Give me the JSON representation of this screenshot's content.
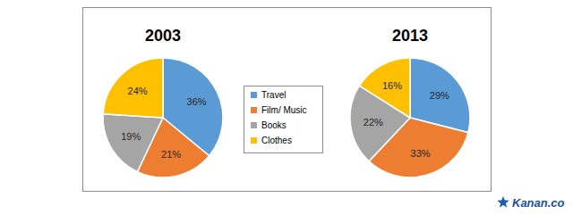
{
  "chart_data": {
    "type": "pie",
    "categories": [
      "Travel",
      "Film/ Music",
      "Books",
      "Clothes"
    ],
    "colors": [
      "#5b9bd5",
      "#ed7d31",
      "#a5a5a5",
      "#ffc000"
    ],
    "series": [
      {
        "name": "2003",
        "values": [
          36,
          21,
          19,
          24
        ],
        "value_labels": [
          "36%",
          "21%",
          "19%",
          "24%"
        ]
      },
      {
        "name": "2013",
        "values": [
          29,
          33,
          22,
          16
        ],
        "value_labels": [
          "29%",
          "33%",
          "22%",
          "16%"
        ]
      }
    ],
    "data_labels": true,
    "legend": "center",
    "annotations": [
      "Kanan.co"
    ]
  }
}
